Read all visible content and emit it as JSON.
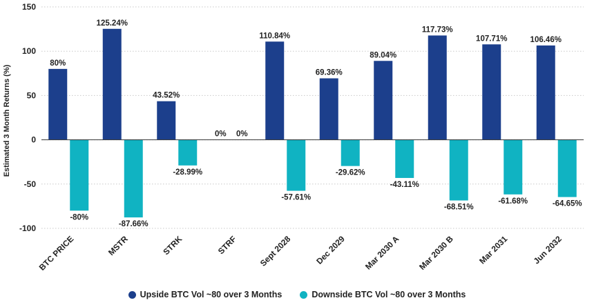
{
  "chart_data": {
    "type": "bar",
    "title": "",
    "xlabel": "",
    "ylabel": "Estimated 3 Month Returns (%)",
    "ylim": [
      -100,
      150
    ],
    "yticks": [
      150,
      100,
      50,
      0,
      -50,
      -100
    ],
    "grid": true,
    "legend_position": "bottom-center",
    "categories": [
      "BTC PRICE",
      "MSTR",
      "STRK",
      "STRF",
      "Sept 2028",
      "Dec 2029",
      "Mar 2030 A",
      "Mar 2030 B",
      "Mar 2031",
      "Jun 2032"
    ],
    "series": [
      {
        "name": "Upside BTC Vol ~80 over 3 Months",
        "color": "#1c3f8c",
        "values": [
          80,
          125.24,
          43.52,
          0,
          110.84,
          69.36,
          89.04,
          117.73,
          107.71,
          106.46
        ],
        "labels": [
          "80%",
          "125.24%",
          "43.52%",
          "0%",
          "110.84%",
          "69.36%",
          "89.04%",
          "117.73%",
          "107.71%",
          "106.46%"
        ]
      },
      {
        "name": "Downside BTC Vol ~80 over 3 Months",
        "color": "#10b3c2",
        "values": [
          -80,
          -87.66,
          -28.99,
          0,
          -57.61,
          -29.62,
          -43.11,
          -68.51,
          -61.68,
          -64.65
        ],
        "labels": [
          "-80%",
          "-87.66%",
          "-28.99%",
          "0%",
          "-57.61%",
          "-29.62%",
          "-43.11%",
          "-68.51%",
          "-61.68%",
          "-64.65%"
        ]
      }
    ]
  }
}
